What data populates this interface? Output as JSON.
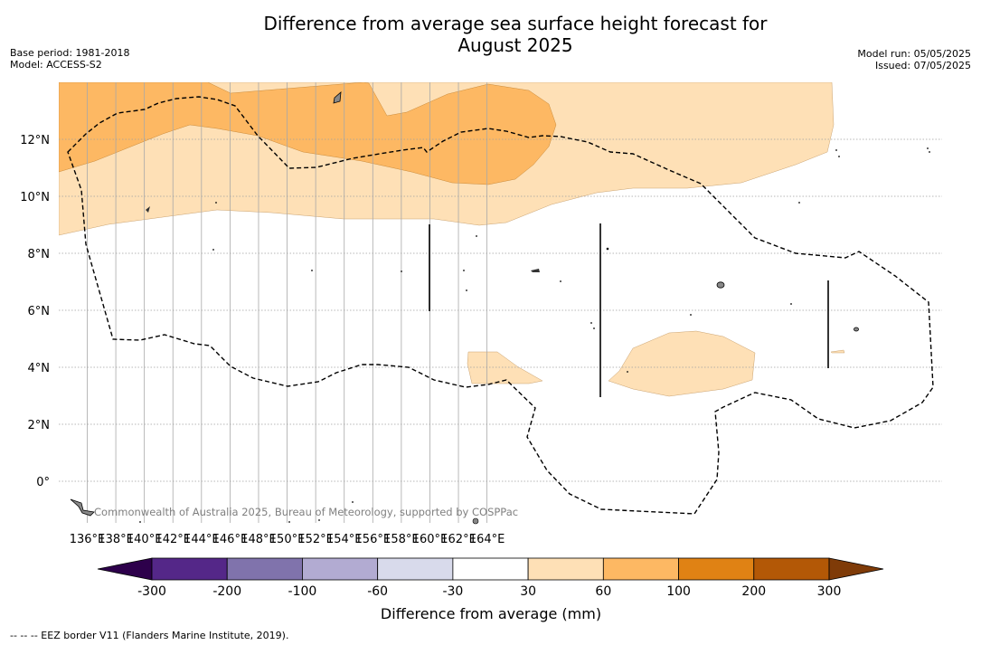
{
  "title": "Difference from average sea surface height forecast for August 2025",
  "title_line1": "Difference from average sea surface height forecast for",
  "title_line2": "August 2025",
  "base_period": "Base period: 1981-2018",
  "model": "Model: ACCESS-S2",
  "model_run": "Model run: 05/05/2025",
  "issued": "Issued: 07/05/2025",
  "copyright": "Commonwealth of Australia 2025, Bureau of Meteorology, supported by COSPPac",
  "longitude_labels": [
    "136°E",
    "138°E",
    "140°E",
    "142°E",
    "144°E",
    "146°E",
    "148°E",
    "150°E",
    "152°E",
    "154°E",
    "156°E",
    "158°E",
    "160°E",
    "162°E",
    "164°E"
  ],
  "latitude_labels": [
    "12°N",
    "10°N",
    "8°N",
    "6°N",
    "4°N",
    "2°N",
    "0°"
  ],
  "colorbar": {
    "title": "Difference from average (mm)",
    "tick_labels": [
      "-300",
      "-200",
      "-100",
      "-60",
      "-30",
      "30",
      "60",
      "100",
      "200",
      "300"
    ],
    "colors": {
      "below_min": "#2d004b",
      "bins": [
        "#542788",
        "#8073ac",
        "#b2abd2",
        "#d8daeb",
        "#ffffff",
        "#fee0b6",
        "#fdb863",
        "#e08214",
        "#b35806"
      ],
      "above_max": "#7f3b08"
    }
  },
  "footnote": "--  --  -- EEZ border V11 (Flanders Marine Institute, 2019)."
}
